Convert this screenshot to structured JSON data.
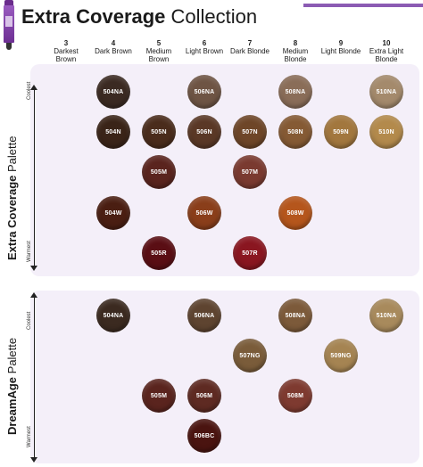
{
  "header": {
    "title_bold": "Extra Coverage",
    "title_regular": " Collection"
  },
  "columns": [
    {
      "num": "3",
      "name": "Darkest Brown"
    },
    {
      "num": "4",
      "name": "Dark Brown"
    },
    {
      "num": "5",
      "name": "Medium Brown"
    },
    {
      "num": "6",
      "name": "Light Brown"
    },
    {
      "num": "7",
      "name": "Dark Blonde"
    },
    {
      "num": "8",
      "name": "Medium Blonde"
    },
    {
      "num": "9",
      "name": "Light Blonde"
    },
    {
      "num": "10",
      "name": "Extra Light Blonde"
    }
  ],
  "palette1": {
    "label_bold": "Extra Coverage",
    "label_regular": " Palette",
    "coolest": "Coolest",
    "warmest": "Warmest",
    "swatches": [
      {
        "code": "504NA",
        "color": "#3b2a22"
      },
      {
        "code": "506NA",
        "color": "#6e5444"
      },
      {
        "code": "508NA",
        "color": "#8a6d58"
      },
      {
        "code": "510NA",
        "color": "#a48a6c"
      },
      {
        "code": "504N",
        "color": "#3a2418"
      },
      {
        "code": "505N",
        "color": "#4a2c1c"
      },
      {
        "code": "506N",
        "color": "#5a3826"
      },
      {
        "code": "507N",
        "color": "#6e4628"
      },
      {
        "code": "508N",
        "color": "#855a34"
      },
      {
        "code": "509N",
        "color": "#a2773e"
      },
      {
        "code": "510N",
        "color": "#b38a4c"
      },
      {
        "code": "505M",
        "color": "#5a241e"
      },
      {
        "code": "507M",
        "color": "#7a3a30"
      },
      {
        "code": "504W",
        "color": "#4a1e12"
      },
      {
        "code": "506W",
        "color": "#8a3e1a"
      },
      {
        "code": "508W",
        "color": "#b5561c"
      },
      {
        "code": "505R",
        "color": "#5a0e14"
      },
      {
        "code": "507R",
        "color": "#8a1620"
      }
    ]
  },
  "palette2": {
    "label_bold": "DreamAge",
    "label_regular": " Palette",
    "coolest": "Coolest",
    "warmest": "Warmest",
    "swatches": [
      {
        "code": "504NA",
        "color": "#3b2a20"
      },
      {
        "code": "506NA",
        "color": "#5e4430"
      },
      {
        "code": "508NA",
        "color": "#7c5a3a"
      },
      {
        "code": "510NA",
        "color": "#a88a5c"
      },
      {
        "code": "507NG",
        "color": "#7a5c3a"
      },
      {
        "code": "509NG",
        "color": "#a58452"
      },
      {
        "code": "505M",
        "color": "#5a241e"
      },
      {
        "code": "506M",
        "color": "#5e2a22"
      },
      {
        "code": "508M",
        "color": "#7e3a30"
      },
      {
        "code": "506BC",
        "color": "#4a1410"
      }
    ]
  }
}
